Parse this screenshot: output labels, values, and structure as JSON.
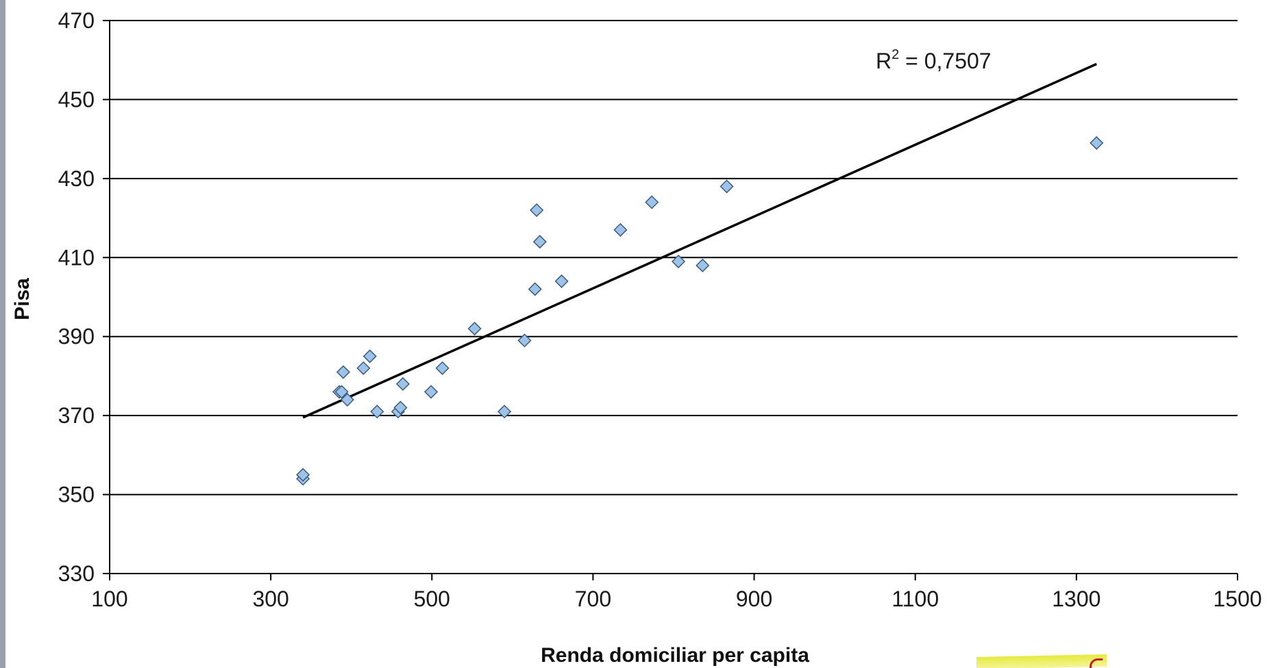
{
  "chart_data": {
    "type": "scatter",
    "title": "",
    "xlabel": "Renda domiciliar per capita",
    "ylabel": "Pisa",
    "xlim": [
      100,
      1500
    ],
    "ylim": [
      330,
      470
    ],
    "x_ticks": [
      "100",
      "300",
      "500",
      "700",
      "900",
      "1100",
      "1300",
      "1500"
    ],
    "y_ticks": [
      "330",
      "350",
      "370",
      "390",
      "410",
      "430",
      "450",
      "470"
    ],
    "grid": "horizontal",
    "legend": "none",
    "marker_color": "#9dc3e6",
    "marker_edge_color": "#3a5a86",
    "trendline_color": "#000000",
    "series": [
      {
        "points": [
          [
            340,
            354
          ],
          [
            340,
            355
          ],
          [
            385,
            376
          ],
          [
            388,
            376
          ],
          [
            390,
            381
          ],
          [
            395,
            374
          ],
          [
            415,
            382
          ],
          [
            423,
            385
          ],
          [
            432,
            371
          ],
          [
            458,
            371
          ],
          [
            461,
            372
          ],
          [
            464,
            378
          ],
          [
            499,
            376
          ],
          [
            513,
            382
          ],
          [
            553,
            392
          ],
          [
            590,
            371
          ],
          [
            615,
            389
          ],
          [
            628,
            402
          ],
          [
            630,
            422
          ],
          [
            634,
            414
          ],
          [
            661,
            404
          ],
          [
            734,
            417
          ],
          [
            773,
            424
          ],
          [
            806,
            409
          ],
          [
            836,
            408
          ],
          [
            866,
            428
          ],
          [
            1325,
            439
          ]
        ]
      }
    ],
    "trendline": {
      "type": "linear",
      "x": [
        340,
        1325
      ],
      "y": [
        369.5,
        459
      ]
    },
    "annotations": [
      {
        "text_main": "R",
        "text_sup": "2",
        "text_rest": " = 0,7507"
      }
    ]
  }
}
